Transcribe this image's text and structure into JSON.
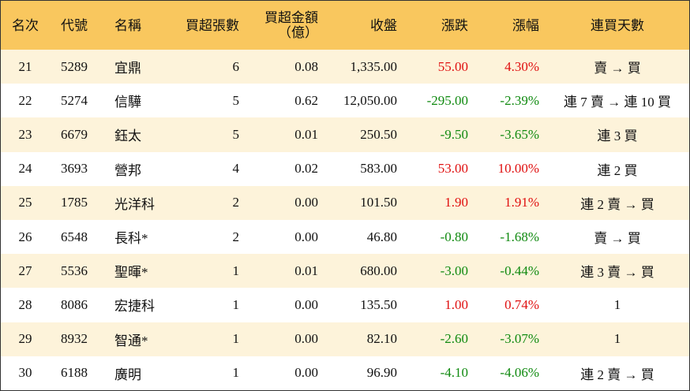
{
  "table": {
    "header": [
      [
        "名次"
      ],
      [
        "代號"
      ],
      [
        "名稱"
      ],
      [
        "買超張數"
      ],
      [
        "買超金額",
        "（億）"
      ],
      [
        "收盤"
      ],
      [
        "漲跌"
      ],
      [
        "漲幅"
      ],
      [
        "連買天數"
      ]
    ],
    "rows": [
      [
        "21",
        "5289",
        "宜鼎",
        "6",
        "0.08",
        "1,335.00",
        "55.00",
        "4.30%",
        "賣 → 買"
      ],
      [
        "22",
        "5274",
        "信驊",
        "5",
        "0.62",
        "12,050.00",
        "-295.00",
        "-2.39%",
        "連 7 賣 → 連 10 買"
      ],
      [
        "23",
        "6679",
        "鈺太",
        "5",
        "0.01",
        "250.50",
        "-9.50",
        "-3.65%",
        "連 3 買"
      ],
      [
        "24",
        "3693",
        "營邦",
        "4",
        "0.02",
        "583.00",
        "53.00",
        "10.00%",
        "連 2 買"
      ],
      [
        "25",
        "1785",
        "光洋科",
        "2",
        "0.00",
        "101.50",
        "1.90",
        "1.91%",
        "連 2 賣 → 買"
      ],
      [
        "26",
        "6548",
        "長科*",
        "2",
        "0.00",
        "46.80",
        "-0.80",
        "-1.68%",
        "賣 → 買"
      ],
      [
        "27",
        "5536",
        "聖暉*",
        "1",
        "0.01",
        "680.00",
        "-3.00",
        "-0.44%",
        "連 3 賣 → 買"
      ],
      [
        "28",
        "8086",
        "宏捷科",
        "1",
        "0.00",
        "135.50",
        "1.00",
        "0.74%",
        "1"
      ],
      [
        "29",
        "8932",
        "智通*",
        "1",
        "0.00",
        "82.10",
        "-2.60",
        "-3.07%",
        "1"
      ],
      [
        "30",
        "6188",
        "廣明",
        "1",
        "0.00",
        "96.90",
        "-4.10",
        "-4.06%",
        "連 2 賣 → 買"
      ]
    ]
  }
}
